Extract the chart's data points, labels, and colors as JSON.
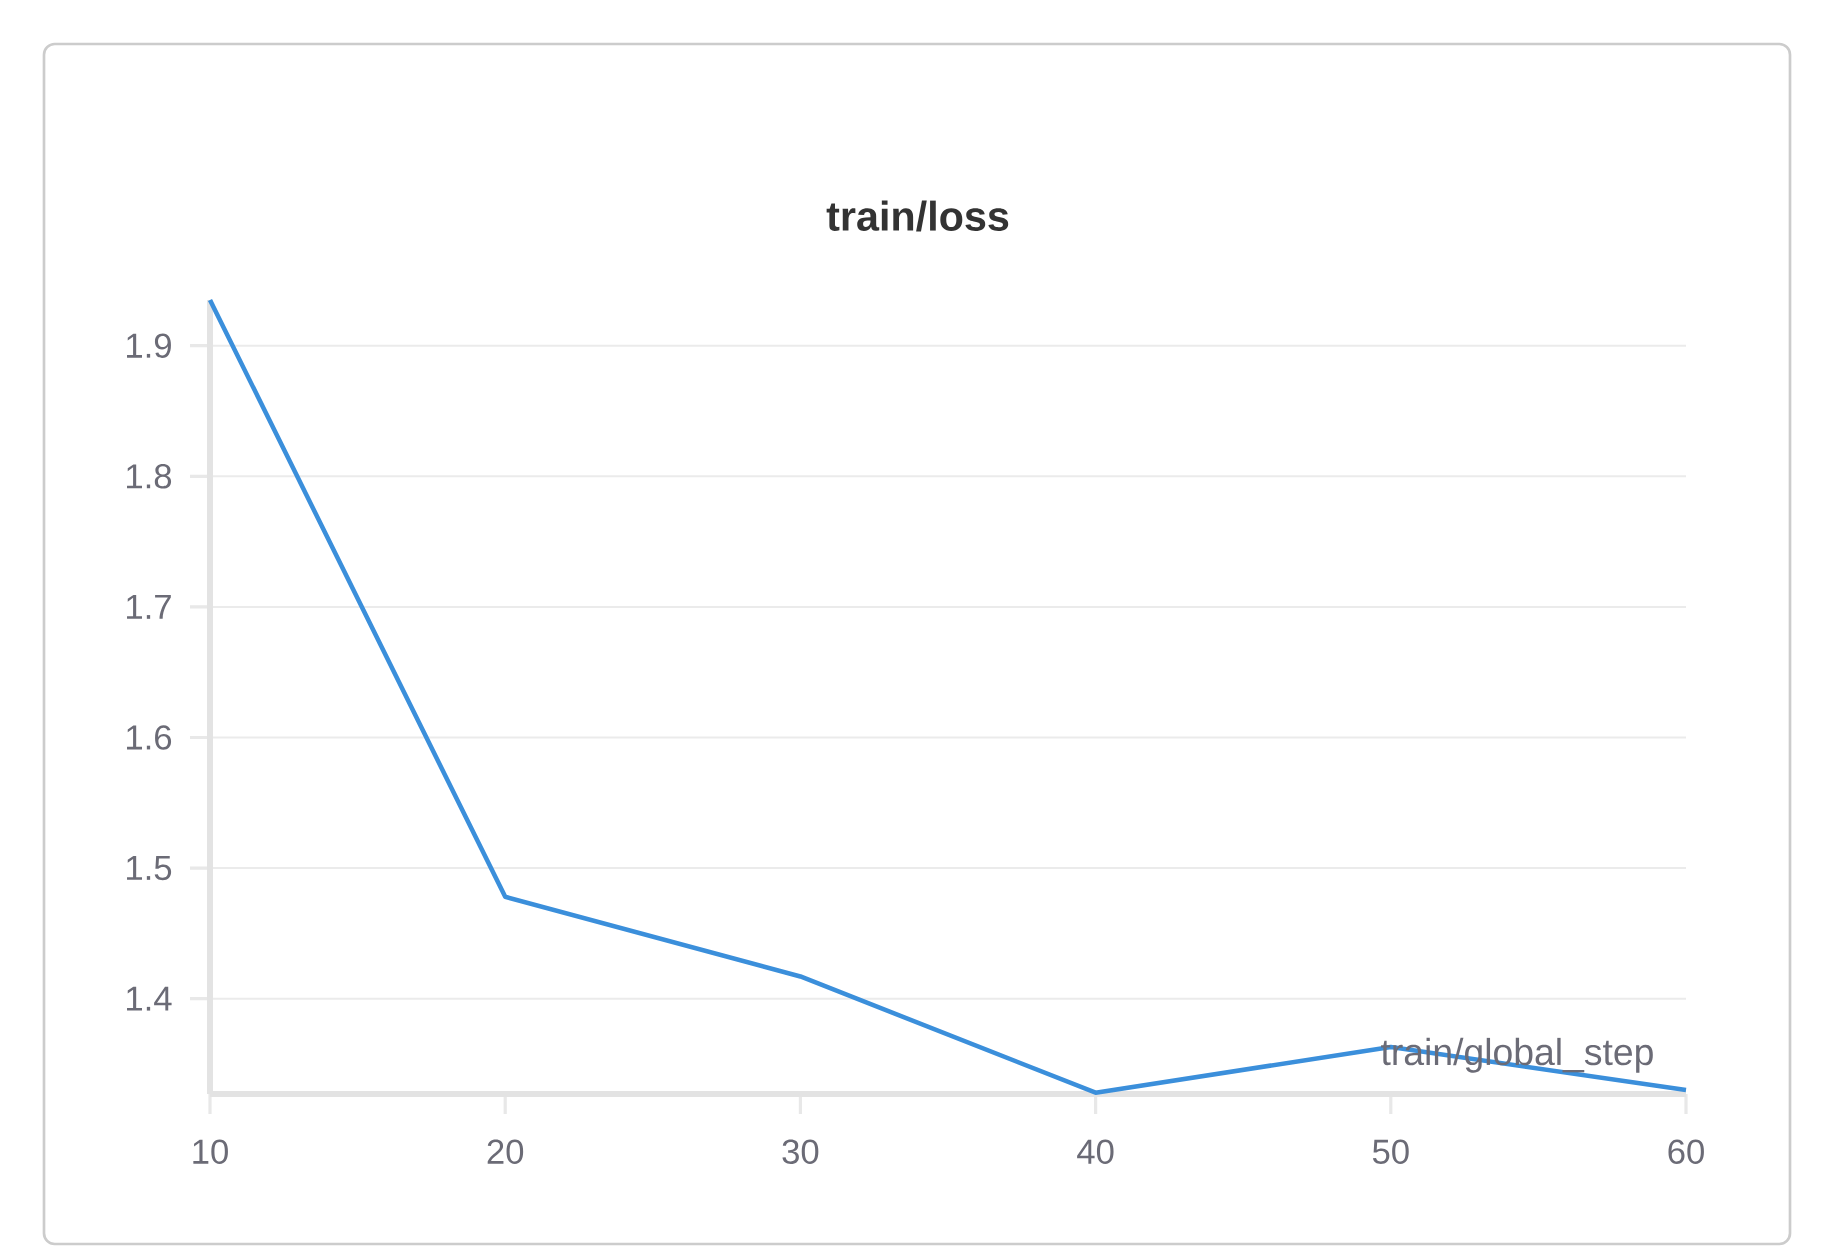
{
  "chart_data": {
    "type": "line",
    "title": "train/loss",
    "xlabel": "train/global_step",
    "x": [
      10,
      20,
      30,
      40,
      50,
      60
    ],
    "series": [
      {
        "color": "#3b8fdb",
        "values": [
          1.935,
          1.478,
          1.417,
          1.328,
          1.363,
          1.33
        ]
      }
    ],
    "xlim": [
      10,
      60
    ],
    "ylim": [
      1.327,
      1.935
    ],
    "xticks": [
      10,
      20,
      30,
      40,
      50,
      60
    ],
    "yticks": [
      1.4,
      1.5,
      1.6,
      1.7,
      1.8,
      1.9
    ],
    "grid": "y",
    "legend": false,
    "marker": "none",
    "line_style": "solid"
  }
}
